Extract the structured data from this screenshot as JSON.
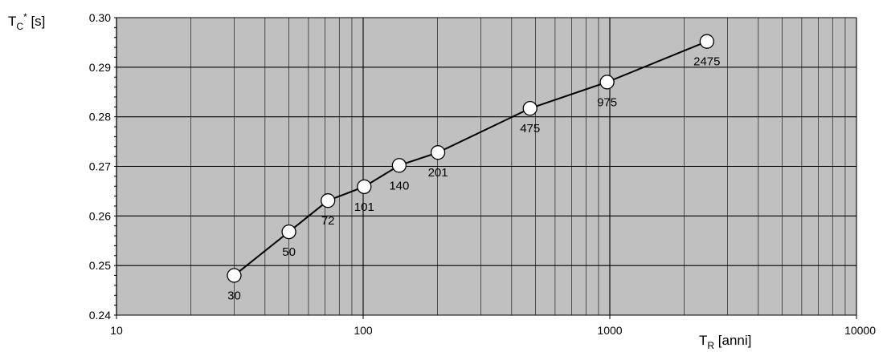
{
  "chart_data": {
    "type": "scatter",
    "xscale": "log",
    "xlim": [
      10,
      10000
    ],
    "ylim": [
      0.24,
      0.3
    ],
    "xticks": [
      "10",
      "100",
      "1000",
      "10000"
    ],
    "yticks": [
      "0.24",
      "0.25",
      "0.26",
      "0.27",
      "0.28",
      "0.29",
      "0.30"
    ],
    "grid": true,
    "connect_points": true,
    "colors": {
      "plot_background": "#c0c0c0",
      "grid": "#000000",
      "line": "#000000",
      "marker_fill": "#ffffff"
    },
    "ylabel": {
      "main": "T",
      "sub": "C",
      "sup": "*",
      "unit": " [s]"
    },
    "xlabel": {
      "main": "T",
      "sub": "R",
      "unit": " [anni]"
    },
    "series": [
      {
        "x": [
          30,
          50,
          72,
          101,
          140,
          201,
          475,
          975,
          2475
        ],
        "y": [
          0.248,
          0.2568,
          0.2631,
          0.2659,
          0.2702,
          0.2728,
          0.2817,
          0.287,
          0.2952
        ],
        "point_labels": [
          "30",
          "50",
          "72",
          "101",
          "140",
          "201",
          "475",
          "975",
          "2475"
        ]
      }
    ]
  }
}
